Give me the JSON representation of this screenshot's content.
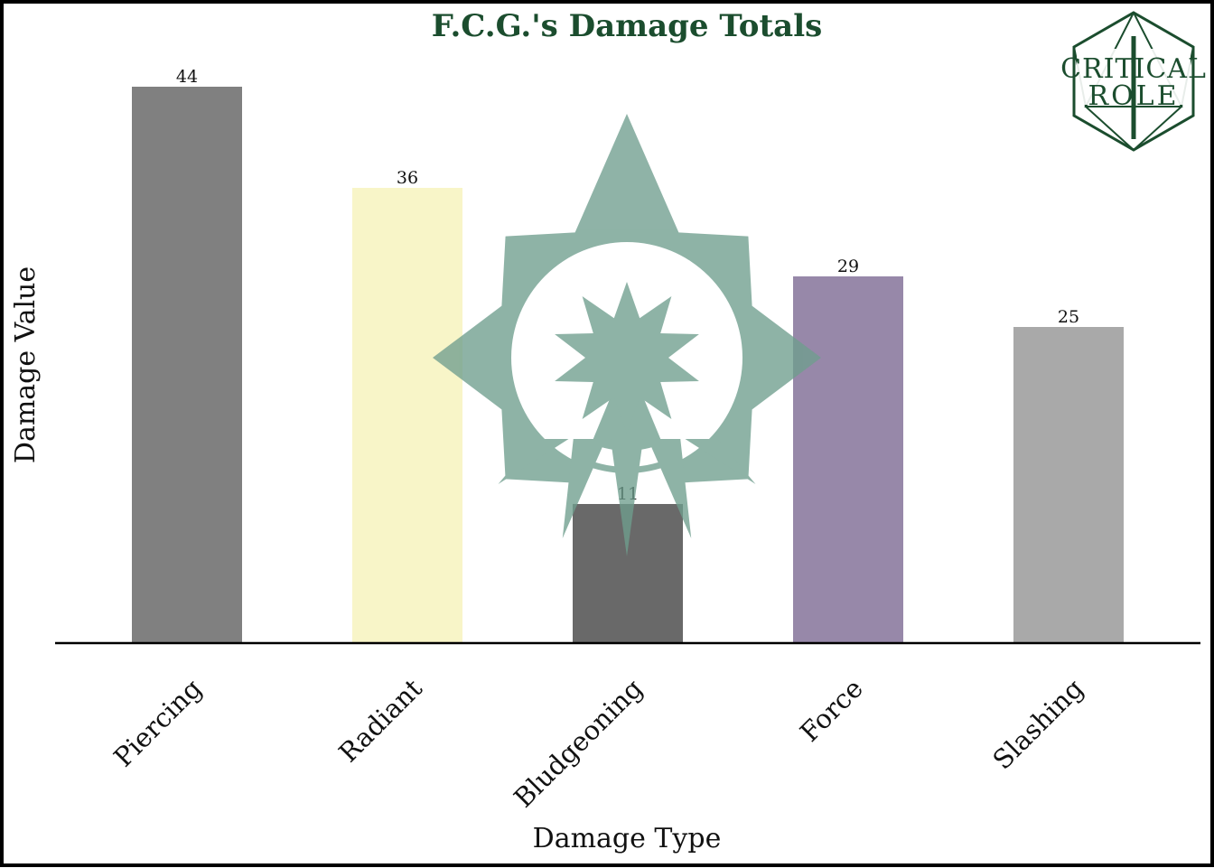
{
  "chart_data": {
    "type": "bar",
    "title": "F.C.G.'s Damage Totals",
    "xlabel": "Damage Type",
    "ylabel": "Damage Value",
    "categories": [
      "Piercing",
      "Radiant",
      "Bludgeoning",
      "Force",
      "Slashing"
    ],
    "values": [
      44,
      36,
      11,
      29,
      25
    ],
    "colors": [
      "#808080",
      "#f8f5c8",
      "#696969",
      "#9788a9",
      "#a9a9a9"
    ],
    "ylim": [
      0,
      44
    ],
    "grid": false,
    "legend": "none",
    "y_ticks_shown": false,
    "title_color": "#1b4d2e"
  },
  "logo": {
    "text": "CRITICAL ROLE",
    "color": "#1b4d2e"
  },
  "watermark": {
    "name": "radiant-sunburst-icon",
    "color": "#6f9e8e"
  }
}
